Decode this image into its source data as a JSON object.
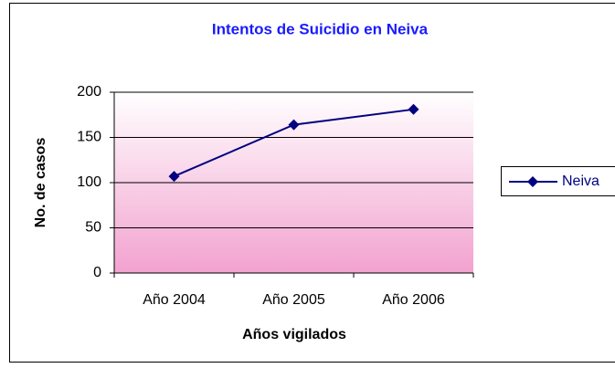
{
  "chart_data": {
    "type": "line",
    "title": "Intentos de Suicidio en Neiva",
    "x_label": "Años vigilados",
    "y_label": "No. de casos",
    "categories": [
      "Año 2004",
      "Año 2005",
      "Año 2006"
    ],
    "series": [
      {
        "name": "Neiva",
        "color": "#000080",
        "values": [
          107,
          164,
          181
        ]
      }
    ],
    "ylim": [
      0,
      200
    ],
    "yticks": [
      0,
      50,
      100,
      150,
      200
    ],
    "grid": true,
    "legend": "right"
  }
}
